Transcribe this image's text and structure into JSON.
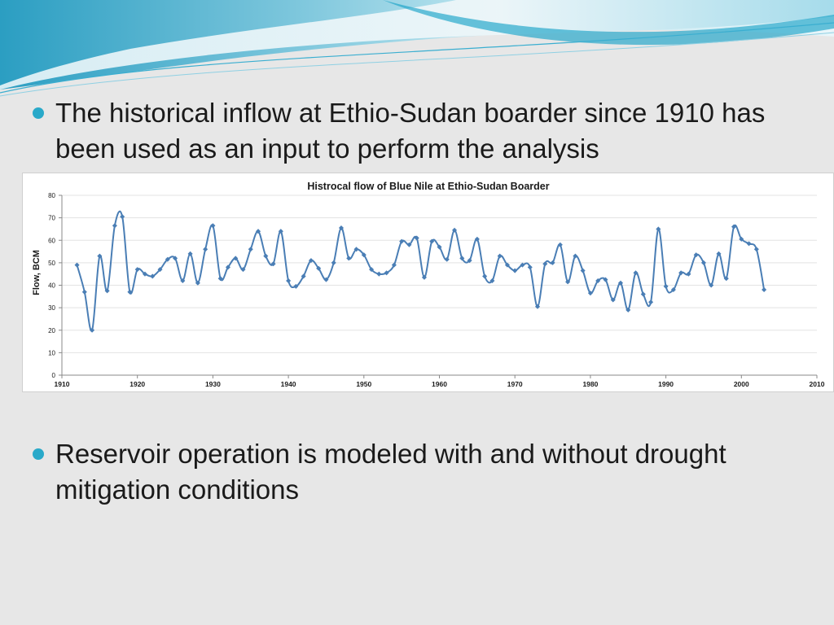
{
  "slide": {
    "bullets": [
      "The historical inflow at Ethio-Sudan boarder since 1910 has been used as an input to perform the analysis",
      "Reservoir operation is modeled with and without drought mitigation conditions"
    ]
  },
  "colors": {
    "background": "#e7e7e7",
    "bullet_dot": "#29a9c9",
    "series_line": "#4a7eb5",
    "header_wave_light": "#cdeef6",
    "header_wave_dark": "#1aa3c8"
  },
  "chart_data": {
    "type": "line",
    "title": "Histrocal flow of Blue Nile at Ethio-Sudan Boarder",
    "xlabel": "",
    "ylabel": "Flow, BCM",
    "xlim": [
      1910,
      2010
    ],
    "ylim": [
      0,
      80
    ],
    "xticks": [
      "1910",
      "1920",
      "1930",
      "1940",
      "1950",
      "1960",
      "1970",
      "1980",
      "1990",
      "2000",
      "2010"
    ],
    "yticks": [
      "0",
      "10",
      "20",
      "30",
      "40",
      "50",
      "60",
      "70",
      "80"
    ],
    "grid": true,
    "legend": "none",
    "marker": "diamond",
    "x": [
      1912,
      1913,
      1914,
      1915,
      1916,
      1917,
      1918,
      1919,
      1920,
      1921,
      1922,
      1923,
      1924,
      1925,
      1926,
      1927,
      1928,
      1929,
      1930,
      1931,
      1932,
      1933,
      1934,
      1935,
      1936,
      1937,
      1938,
      1939,
      1940,
      1941,
      1942,
      1943,
      1944,
      1945,
      1946,
      1947,
      1948,
      1949,
      1950,
      1951,
      1952,
      1953,
      1954,
      1955,
      1956,
      1957,
      1958,
      1959,
      1960,
      1961,
      1962,
      1963,
      1964,
      1965,
      1966,
      1967,
      1968,
      1969,
      1970,
      1971,
      1972,
      1973,
      1974,
      1975,
      1976,
      1977,
      1978,
      1979,
      1980,
      1981,
      1982,
      1983,
      1984,
      1985,
      1986,
      1987,
      1988,
      1989,
      1990,
      1991,
      1992,
      1993,
      1994,
      1995,
      1996,
      1997,
      1998,
      1999,
      2000,
      2001,
      2002,
      2003
    ],
    "y": [
      49,
      37,
      20,
      53,
      37.5,
      66.5,
      70.5,
      37,
      47,
      45,
      44,
      47,
      51.5,
      52,
      42,
      54,
      41,
      56,
      66.5,
      43,
      48,
      52,
      47,
      56,
      64,
      53,
      49.5,
      64,
      42,
      39.5,
      44,
      51,
      47.5,
      42.5,
      50,
      65.5,
      52,
      56,
      53.5,
      47,
      45,
      45.5,
      49,
      59.5,
      58,
      61,
      43.5,
      59.5,
      57,
      51.5,
      64.5,
      52,
      51,
      60.5,
      44,
      42,
      53,
      49,
      46.5,
      49,
      48,
      30.5,
      49.5,
      50,
      58,
      41.5,
      53,
      46.5,
      36.5,
      42,
      42.5,
      33.5,
      41,
      29,
      45.5,
      36,
      32.5,
      65,
      39.5,
      38,
      45.5,
      45,
      53.5,
      50,
      40,
      54,
      43,
      66,
      60.5,
      58.5,
      56,
      38
    ]
  }
}
